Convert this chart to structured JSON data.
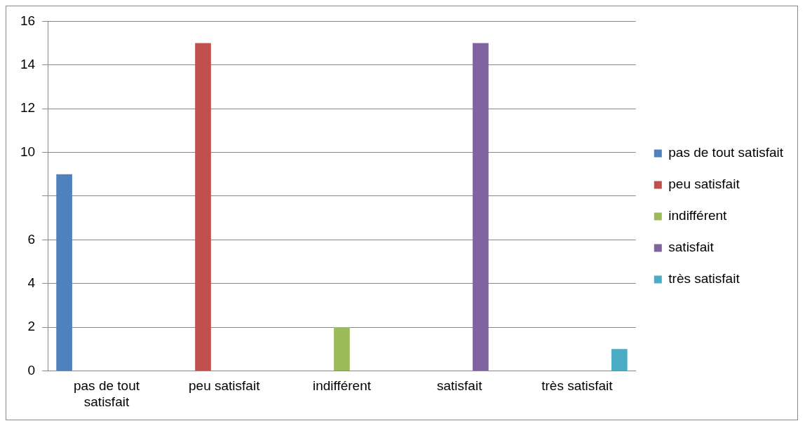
{
  "chart_data": {
    "type": "bar",
    "categories": [
      "pas de tout satisfait",
      "peu satisfait",
      "indifférent",
      "satisfait",
      "très satisfait"
    ],
    "series": [
      {
        "name": "pas de tout satisfait",
        "color": "#4f81bd",
        "values": [
          9,
          null,
          null,
          null,
          null
        ]
      },
      {
        "name": "peu satisfait",
        "color": "#c0504d",
        "values": [
          null,
          15,
          null,
          null,
          null
        ]
      },
      {
        "name": "indifférent",
        "color": "#9bbb59",
        "values": [
          null,
          null,
          2,
          null,
          null
        ]
      },
      {
        "name": "satisfait",
        "color": "#8064a2",
        "values": [
          null,
          null,
          null,
          15,
          null
        ]
      },
      {
        "name": "très satisfait",
        "color": "#4bacc6",
        "values": [
          null,
          null,
          null,
          null,
          1
        ]
      }
    ],
    "ylim": [
      0,
      16
    ],
    "yticks": [
      0,
      2,
      4,
      6,
      {
        "value": 8,
        "label": null
      },
      10,
      12,
      14,
      16
    ],
    "grid": "y",
    "legend": "right"
  }
}
